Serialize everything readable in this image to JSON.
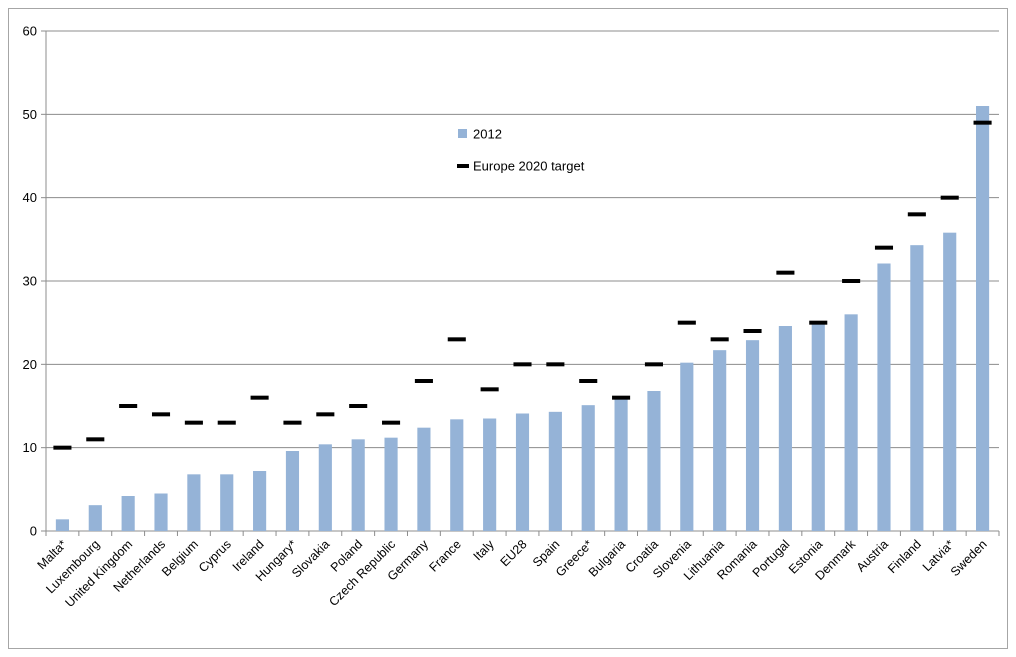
{
  "chart_data": {
    "type": "bar",
    "title": "",
    "xlabel": "",
    "ylabel": "",
    "ylim": [
      0,
      60
    ],
    "yticks": [
      0,
      10,
      20,
      30,
      40,
      50,
      60
    ],
    "grid": true,
    "legend_placement": "upper-center",
    "categories": [
      "Malta*",
      "Luxembourg",
      "United Kingdom",
      "Netherlands",
      "Belgium",
      "Cyprus",
      "Ireland",
      "Hungary*",
      "Slovakia",
      "Poland",
      "Czech Republic",
      "Germany",
      "France",
      "Italy",
      "EU28",
      "Spain",
      "Greece*",
      "Bulgaria",
      "Croatia",
      "Slovenia",
      "Lithuania",
      "Romania",
      "Portugal",
      "Estonia",
      "Denmark",
      "Austria",
      "Finland",
      "Latvia*",
      "Sweden"
    ],
    "series": [
      {
        "name": "2012",
        "kind": "bar",
        "color": "#95b3d7",
        "values": [
          1.4,
          3.1,
          4.2,
          4.5,
          6.8,
          6.8,
          7.2,
          9.6,
          10.4,
          11.0,
          11.2,
          12.4,
          13.4,
          13.5,
          14.1,
          14.3,
          15.1,
          16.0,
          16.8,
          20.2,
          21.7,
          22.9,
          24.6,
          25.2,
          26.0,
          32.1,
          34.3,
          35.8,
          51.0
        ]
      },
      {
        "name": "Europe 2020 target",
        "kind": "marker",
        "color": "#000000",
        "values": [
          10,
          11,
          15,
          14,
          13,
          13,
          16,
          13,
          14,
          15,
          13,
          18,
          23,
          17,
          20,
          20,
          18,
          16,
          20,
          25,
          23,
          24,
          31,
          25,
          30,
          34,
          38,
          40,
          49
        ]
      }
    ]
  }
}
